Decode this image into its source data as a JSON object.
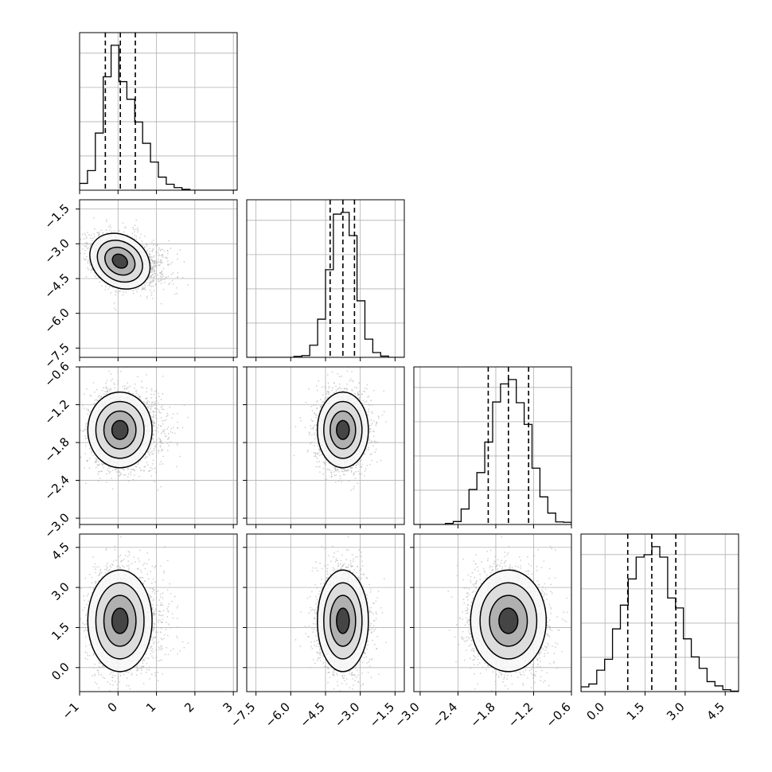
{
  "chart_data": {
    "type": "corner",
    "parameters": [
      {
        "range": [
          -1.0,
          3.1
        ],
        "ticks": [
          -1,
          0,
          1,
          2,
          3
        ],
        "tick_labels": [
          "−1",
          "0",
          "1",
          "2",
          "3"
        ],
        "center": 0.05,
        "sd": 0.38,
        "skew_right": 1.4,
        "quantiles": [
          -0.33,
          0.06,
          0.45
        ]
      },
      {
        "range": [
          -7.9,
          -1.1
        ],
        "ticks": [
          -7.5,
          -6.0,
          -4.5,
          -3.0,
          -1.5
        ],
        "tick_labels": [
          "−7.5",
          "−6.0",
          "−4.5",
          "−3.0",
          "−1.5"
        ],
        "center": -3.75,
        "sd": 0.55,
        "quantiles": [
          -4.3,
          -3.75,
          -3.25
        ]
      },
      {
        "range": [
          -3.1,
          -0.6
        ],
        "ticks": [
          -3.0,
          -2.4,
          -1.8,
          -1.2,
          -0.6
        ],
        "tick_labels": [
          "−3.0",
          "−2.4",
          "−1.8",
          "−1.2",
          "−0.6"
        ],
        "center": -1.6,
        "sd": 0.3,
        "quantiles": [
          -1.92,
          -1.6,
          -1.28
        ]
      },
      {
        "range": [
          -0.9,
          5.0
        ],
        "ticks": [
          0.0,
          1.5,
          3.0,
          4.5
        ],
        "tick_labels": [
          "0.0",
          "1.5",
          "3.0",
          "4.5"
        ],
        "center": 1.75,
        "sd": 0.95,
        "quantiles": [
          0.85,
          1.75,
          2.65
        ]
      }
    ],
    "correlations": [
      [
        1.0,
        -0.3,
        0.0,
        0.0
      ],
      [
        -0.3,
        1.0,
        0.0,
        0.0
      ],
      [
        0.0,
        0.0,
        1.0,
        0.0
      ],
      [
        0.0,
        0.0,
        0.0,
        1.0
      ]
    ],
    "histogram_bins": 20,
    "samples_shown_per_panel": 2500,
    "quantile_levels": [
      0.16,
      0.5,
      0.84
    ],
    "contour_levels_sigma": [
      0.5,
      1.0,
      1.5,
      2.0
    ],
    "grid": true,
    "colors": {
      "line": "#000000",
      "scatter": "#b4b4b4",
      "grid": "#b0b0b0",
      "density_light": "#ffffff",
      "density_dark": "#222222"
    }
  }
}
